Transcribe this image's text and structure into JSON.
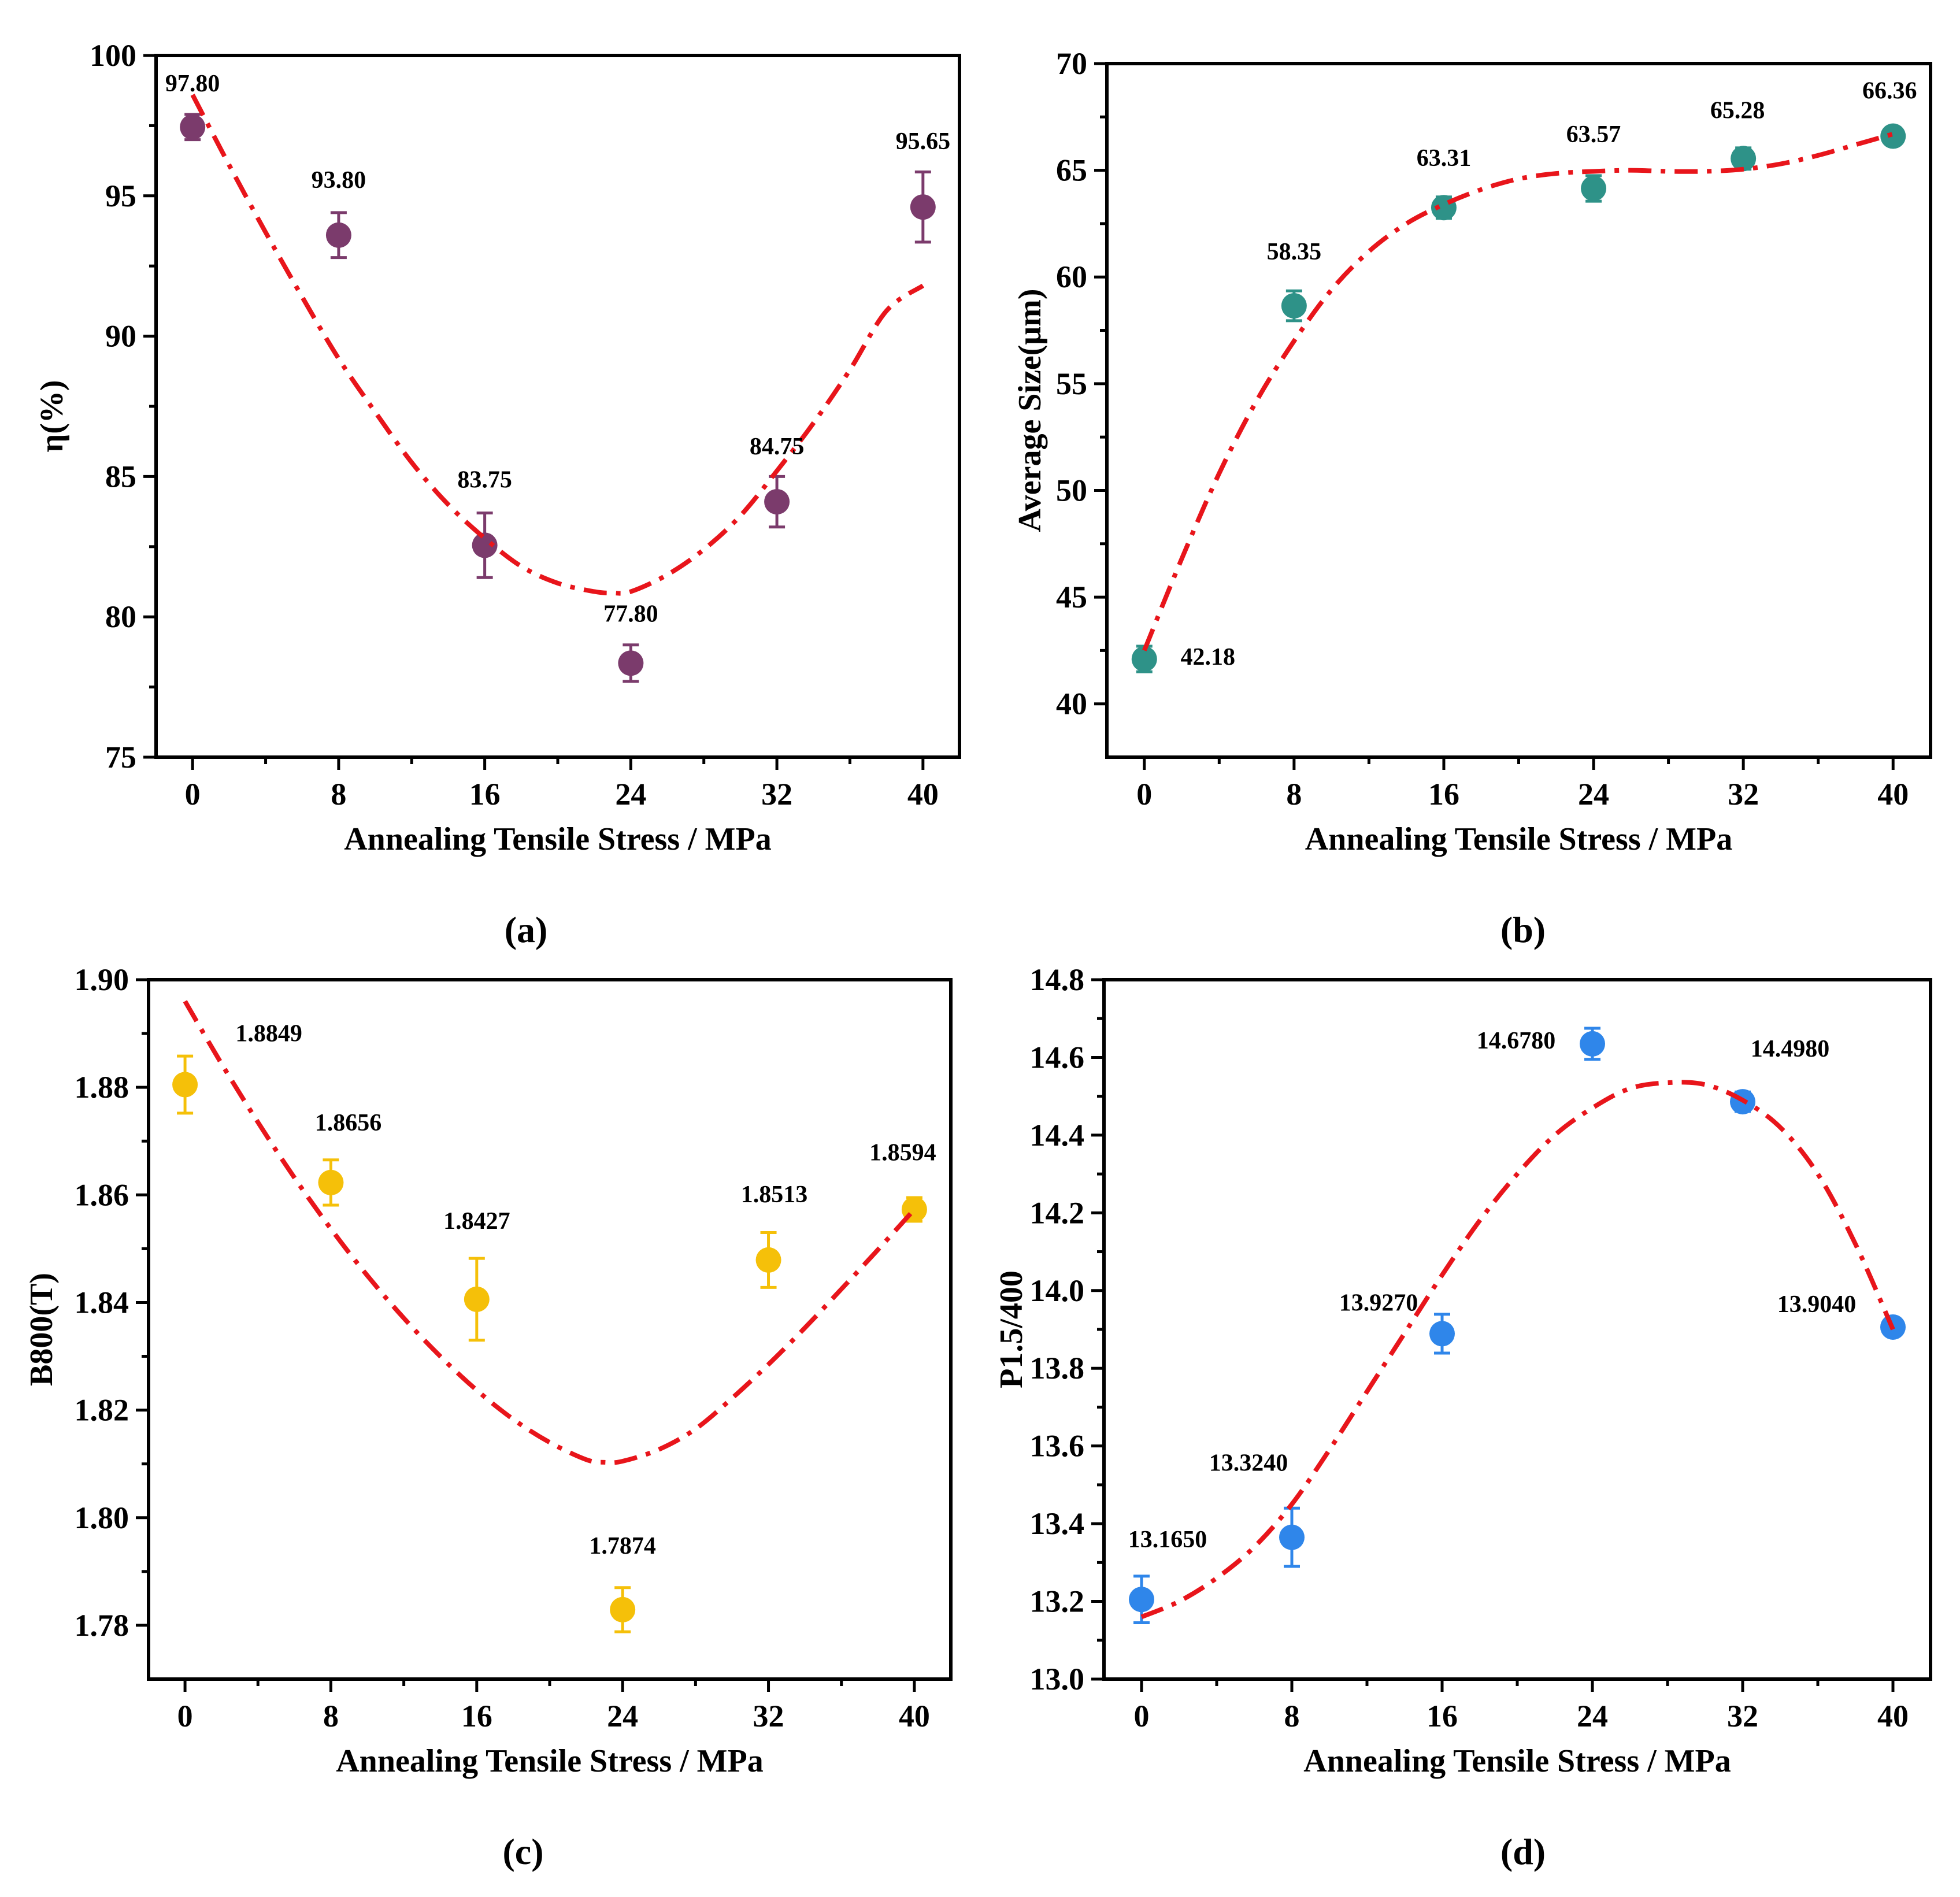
{
  "chart_data": [
    {
      "type": "scatter",
      "panel_label": "(a)",
      "xlabel": "Annealing  Tensile  Stress /  MPa",
      "ylabel": "η(%)",
      "xlim": [
        -2,
        42
      ],
      "ylim": [
        75,
        100
      ],
      "xticks": [
        0,
        8,
        16,
        24,
        32,
        40
      ],
      "yticks": [
        75,
        80,
        85,
        90,
        95,
        100
      ],
      "color": "#7b3b6c",
      "x": [
        0,
        8,
        16,
        24,
        32,
        40
      ],
      "y": [
        97.45,
        93.6,
        82.55,
        78.35,
        84.1,
        94.6
      ],
      "err": [
        0.45,
        0.8,
        1.15,
        0.65,
        0.9,
        1.25
      ],
      "labels": [
        "97.80",
        "93.80",
        "83.75",
        "77.80",
        "84.75",
        "95.65"
      ],
      "fit_x": [
        0,
        2,
        4,
        6,
        8,
        10,
        12,
        14,
        16,
        18,
        20,
        22,
        23,
        24,
        26,
        28,
        30,
        32,
        34,
        36,
        38,
        40
      ],
      "fit_y": [
        98.6,
        96.1,
        93.7,
        91.4,
        89.2,
        87.3,
        85.5,
        84.0,
        82.8,
        81.8,
        81.2,
        80.9,
        80.85,
        80.9,
        81.5,
        82.4,
        83.6,
        85.2,
        86.9,
        88.8,
        90.9,
        91.8
      ]
    },
    {
      "type": "scatter",
      "panel_label": "(b)",
      "xlabel": "Annealing  Tensile  Stress /  MPa",
      "ylabel": "Average Size(μm)",
      "xlim": [
        -2,
        42
      ],
      "ylim": [
        37.5,
        70
      ],
      "xticks": [
        0,
        8,
        16,
        24,
        32,
        40
      ],
      "yticks": [
        40,
        45,
        50,
        55,
        60,
        65,
        70
      ],
      "color": "#2e9288",
      "x": [
        0,
        8,
        16,
        24,
        32,
        40
      ],
      "y": [
        42.1,
        58.65,
        63.25,
        64.15,
        65.55,
        66.6
      ],
      "err": [
        0.6,
        0.7,
        0.5,
        0.6,
        0.5,
        0.4
      ],
      "labels": [
        "42.18",
        "58.35",
        "63.31",
        "63.57",
        "65.28",
        "66.36"
      ],
      "fit_x": [
        0,
        2,
        4,
        6,
        8,
        10,
        12,
        14,
        16,
        18,
        20,
        22,
        24,
        26,
        28,
        30,
        32,
        34,
        36,
        38,
        40
      ],
      "fit_y": [
        42.5,
        46.8,
        50.8,
        54.2,
        57.0,
        59.4,
        61.2,
        62.5,
        63.4,
        64.1,
        64.6,
        64.85,
        64.95,
        65.0,
        64.95,
        64.95,
        65.05,
        65.3,
        65.7,
        66.2,
        66.7
      ]
    },
    {
      "type": "scatter",
      "panel_label": "(c)",
      "xlabel": "Annealing  Tensile  Stress /  MPa",
      "ylabel": "B800(T)",
      "xlim": [
        -2,
        42
      ],
      "ylim": [
        1.77,
        1.9
      ],
      "xticks": [
        0,
        8,
        16,
        24,
        32,
        40
      ],
      "yticks": [
        1.78,
        1.8,
        1.82,
        1.84,
        1.86,
        1.88,
        1.9
      ],
      "yticklabels": [
        "1.78",
        "1.80",
        "1.82",
        "1.84",
        "1.86",
        "1.88",
        "1.90"
      ],
      "color": "#f5c009",
      "x": [
        0,
        8,
        16,
        24,
        32,
        40
      ],
      "y": [
        1.8805,
        1.8623,
        1.8406,
        1.7829,
        1.8479,
        1.8573
      ],
      "err": [
        0.0053,
        0.0042,
        0.0076,
        0.0041,
        0.0051,
        0.0022
      ],
      "labels": [
        "1.8849",
        "1.8656",
        "1.8427",
        "1.7874",
        "1.8513",
        "1.8594"
      ],
      "fit_x": [
        0,
        2,
        4,
        6,
        8,
        10,
        12,
        14,
        16,
        18,
        20,
        22,
        23,
        24,
        26,
        28,
        30,
        32,
        34,
        36,
        38,
        40
      ],
      "fit_y": [
        1.896,
        1.8844,
        1.8735,
        1.8632,
        1.8537,
        1.845,
        1.8371,
        1.83,
        1.8237,
        1.8183,
        1.814,
        1.8108,
        1.8103,
        1.8105,
        1.8127,
        1.8165,
        1.8222,
        1.8285,
        1.8353,
        1.8425,
        1.8498,
        1.8573
      ]
    },
    {
      "type": "scatter",
      "panel_label": "(d)",
      "xlabel": "Annealing  Tensile  Stress /  MPa",
      "ylabel": "P1.5/400",
      "xlim": [
        -2,
        42
      ],
      "ylim": [
        13.0,
        14.8
      ],
      "xticks": [
        0,
        8,
        16,
        24,
        32,
        40
      ],
      "yticks": [
        13.0,
        13.2,
        13.4,
        13.6,
        13.8,
        14.0,
        14.2,
        14.4,
        14.6,
        14.8
      ],
      "yticklabels": [
        "13.0",
        "13.2",
        "13.4",
        "13.6",
        "13.8",
        "14.0",
        "14.2",
        "14.4",
        "14.6",
        "14.8"
      ],
      "color": "#2f86ea",
      "x": [
        0,
        8,
        16,
        24,
        32,
        40
      ],
      "y": [
        13.205,
        13.365,
        13.889,
        14.635,
        14.486,
        13.906
      ],
      "err": [
        0.06,
        0.075,
        0.05,
        0.04,
        0.025,
        0.02
      ],
      "labels": [
        "13.1650",
        "13.3240",
        "13.9270",
        "14.6780",
        "14.4980",
        "13.9040"
      ],
      "fit_x": [
        0,
        2,
        4,
        6,
        8,
        10,
        12,
        14,
        16,
        18,
        20,
        22,
        24,
        26,
        28,
        30,
        32,
        34,
        36,
        38,
        40
      ],
      "fit_y": [
        13.16,
        13.2,
        13.26,
        13.34,
        13.45,
        13.59,
        13.74,
        13.89,
        14.04,
        14.18,
        14.3,
        14.4,
        14.47,
        14.52,
        14.535,
        14.53,
        14.49,
        14.42,
        14.3,
        14.12,
        13.9
      ]
    }
  ]
}
